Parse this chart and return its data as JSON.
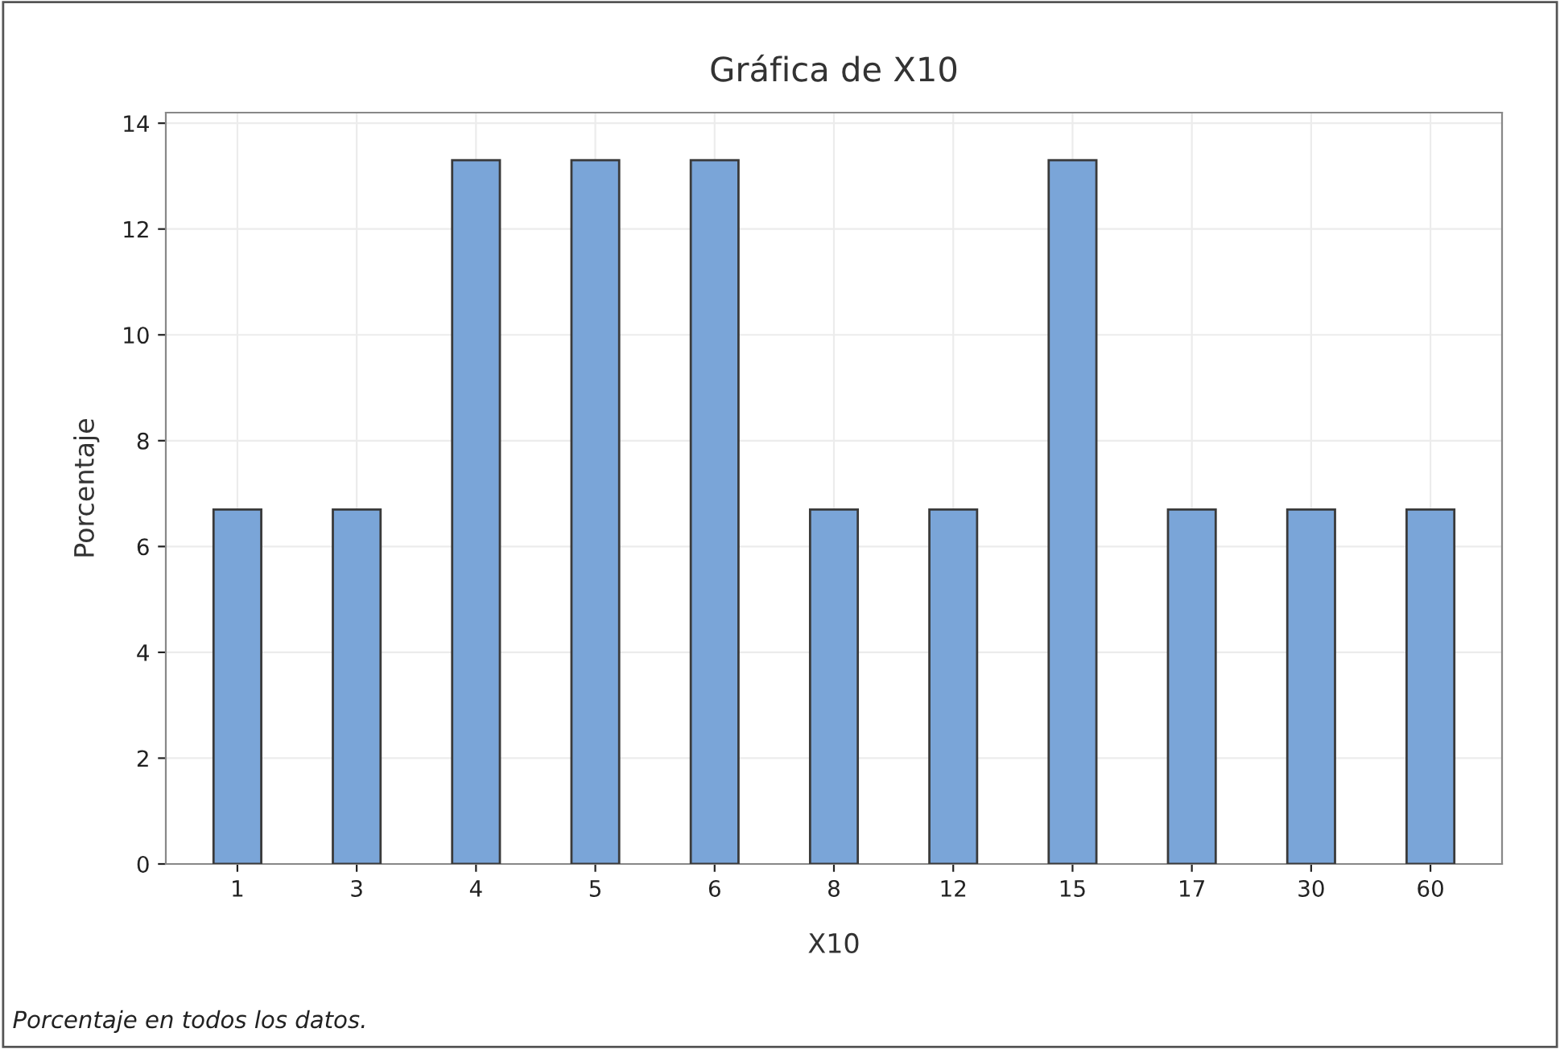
{
  "chart_data": {
    "type": "bar",
    "title": "Gráfica de X10",
    "xlabel": "X10",
    "ylabel": "Porcentaje",
    "categories": [
      "1",
      "3",
      "4",
      "5",
      "6",
      "8",
      "12",
      "15",
      "17",
      "30",
      "60"
    ],
    "values": [
      6.7,
      6.7,
      13.3,
      13.3,
      13.3,
      6.7,
      6.7,
      13.3,
      6.7,
      6.7,
      6.7
    ],
    "color": "#7aa5d8",
    "ylim": [
      0,
      14.2
    ],
    "yticks": [
      0,
      2,
      4,
      6,
      8,
      10,
      12,
      14
    ],
    "grid": true,
    "annotations": [
      "Porcentaje en todos los datos."
    ]
  }
}
